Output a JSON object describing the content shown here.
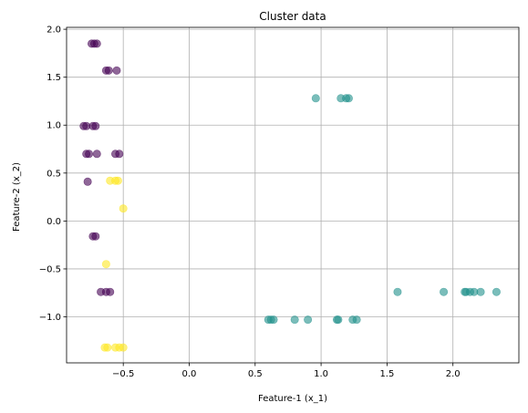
{
  "chart_data": {
    "type": "scatter",
    "title": "Cluster data",
    "xlabel": "Feature-1 (x_1)",
    "ylabel": "Feature-2 (x_2)",
    "xlim": [
      -0.93,
      2.5
    ],
    "ylim": [
      -1.48,
      2.02
    ],
    "grid": true,
    "legend": "none",
    "xticks": [
      -0.5,
      0.0,
      0.5,
      1.0,
      1.5,
      2.0
    ],
    "xtick_labels": [
      "−0.5",
      "0.0",
      "0.5",
      "1.0",
      "1.5",
      "2.0"
    ],
    "yticks": [
      -1.0,
      -0.5,
      0.0,
      0.5,
      1.0,
      1.5,
      2.0
    ],
    "ytick_labels": [
      "−1.0",
      "−0.5",
      "0.0",
      "0.5",
      "1.0",
      "1.5",
      "2.0"
    ],
    "point_alpha": 0.6,
    "series": [
      {
        "color": "#440154",
        "points": [
          [
            -0.72,
            1.85
          ],
          [
            -0.7,
            1.85
          ],
          [
            -0.74,
            1.85
          ],
          [
            -0.63,
            1.57
          ],
          [
            -0.61,
            1.57
          ],
          [
            -0.55,
            1.57
          ],
          [
            -0.8,
            0.99
          ],
          [
            -0.78,
            0.99
          ],
          [
            -0.73,
            0.99
          ],
          [
            -0.71,
            0.99
          ],
          [
            -0.78,
            0.7
          ],
          [
            -0.76,
            0.7
          ],
          [
            -0.7,
            0.7
          ],
          [
            -0.56,
            0.7
          ],
          [
            -0.53,
            0.7
          ],
          [
            -0.77,
            0.41
          ],
          [
            -0.73,
            -0.16
          ],
          [
            -0.71,
            -0.16
          ],
          [
            -0.67,
            -0.74
          ],
          [
            -0.63,
            -0.74
          ],
          [
            -0.6,
            -0.74
          ]
        ]
      },
      {
        "color": "#21918c",
        "points": [
          [
            0.96,
            1.28
          ],
          [
            1.15,
            1.28
          ],
          [
            1.19,
            1.28
          ],
          [
            1.21,
            1.28
          ],
          [
            0.6,
            -1.03
          ],
          [
            0.62,
            -1.03
          ],
          [
            0.64,
            -1.03
          ],
          [
            0.8,
            -1.03
          ],
          [
            0.9,
            -1.03
          ],
          [
            1.12,
            -1.03
          ],
          [
            1.13,
            -1.03
          ],
          [
            1.24,
            -1.03
          ],
          [
            1.27,
            -1.03
          ],
          [
            1.58,
            -0.74
          ],
          [
            1.93,
            -0.74
          ],
          [
            2.09,
            -0.74
          ],
          [
            2.1,
            -0.74
          ],
          [
            2.13,
            -0.74
          ],
          [
            2.16,
            -0.74
          ],
          [
            2.21,
            -0.74
          ],
          [
            2.33,
            -0.74
          ]
        ]
      },
      {
        "color": "#fde725",
        "points": [
          [
            -0.6,
            0.42
          ],
          [
            -0.56,
            0.42
          ],
          [
            -0.54,
            0.42
          ],
          [
            -0.5,
            0.13
          ],
          [
            -0.63,
            -0.45
          ],
          [
            -0.64,
            -1.32
          ],
          [
            -0.62,
            -1.32
          ],
          [
            -0.56,
            -1.32
          ],
          [
            -0.53,
            -1.32
          ],
          [
            -0.5,
            -1.32
          ]
        ]
      }
    ]
  }
}
